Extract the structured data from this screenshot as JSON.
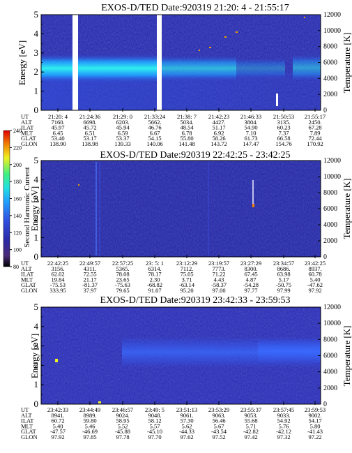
{
  "chart_data": [
    {
      "type": "heatmap",
      "title": "EXOS-D/TED   Date:920319  21:20: 4 - 21:55:17",
      "ylabel": "Energy [eV]",
      "y2label": "Temperature [K]",
      "ylim": [
        0,
        5
      ],
      "yticks": [
        "0",
        "1",
        "2",
        "3",
        "4",
        "5"
      ],
      "y2lim": [
        0,
        12000
      ],
      "y2ticks": [
        "0",
        "2000",
        "4000",
        "6000",
        "8000",
        "10000",
        "12000"
      ],
      "row_labels": [
        "UT",
        "ALT",
        "ILAT",
        "MLT",
        "GLAT",
        "GLON"
      ],
      "columns": [
        [
          "21:20: 4",
          "7160.",
          "45.97",
          "6.45",
          "53.40",
          "138.90"
        ],
        [
          "21:24:36",
          "6698.",
          "45.72",
          "6.51",
          "53.17",
          "138.98"
        ],
        [
          "21:29: 0",
          "6203.",
          "45.94",
          "6.59",
          "53.37",
          "139.33"
        ],
        [
          "21:33:24",
          "5662.",
          "46.76",
          "6.67",
          "54.15",
          "140.06"
        ],
        [
          "21:38: 7",
          "5034.",
          "48.54",
          "6.78",
          "55.80",
          "141.48"
        ],
        [
          "21:42:23",
          "4427.",
          "51.17",
          "6.92",
          "58.26",
          "143.72"
        ],
        [
          "21:46:33",
          "3804.",
          "54.90",
          "7.10",
          "61.73",
          "147.47"
        ],
        [
          "21:50:53",
          "3135.",
          "60.23",
          "7.37",
          "66.58",
          "154.76"
        ],
        [
          "21:55:17",
          "2450.",
          "67.28",
          "7.89",
          "72.44",
          "170.92"
        ]
      ]
    },
    {
      "type": "heatmap",
      "title": "EXOS-D/TED   Date:920319  22:42:25 - 23:42:25",
      "ylabel": "Energy [eV]",
      "y2label": "Temperature [K]",
      "ylim": [
        0,
        5
      ],
      "yticks": [
        "0",
        "1",
        "2",
        "3",
        "4",
        "5"
      ],
      "y2lim": [
        0,
        12000
      ],
      "y2ticks": [
        "0",
        "2000",
        "4000",
        "6000",
        "8000",
        "10000",
        "12000"
      ],
      "colorbar": {
        "label": "Second Harmonic Current",
        "range": [
          80,
          240
        ],
        "ticks": [
          "80",
          "100",
          "120",
          "140",
          "160",
          "180",
          "200",
          "220",
          "240"
        ]
      },
      "row_labels": [
        "UT",
        "ALT",
        "ILAT",
        "MLT",
        "GLAT",
        "GLON"
      ],
      "columns": [
        [
          "22:42:25",
          "3156.",
          "62.02",
          "19.84",
          "-75.53",
          "333.95"
        ],
        [
          "22:49:57",
          "4311.",
          "72.55",
          "21.17",
          "-81.37",
          "37.97"
        ],
        [
          "22:57:25",
          "5365.",
          "78.08",
          "23.65",
          "-75.63",
          "79.65"
        ],
        [
          "23: 5: 1",
          "6314.",
          "78.17",
          "2.30",
          "-68.82",
          "91.07"
        ],
        [
          "23:12:29",
          "7112.",
          "75.05",
          "3.71",
          "-63.14",
          "95.20"
        ],
        [
          "23:19:57",
          "7773.",
          "71.22",
          "4.43",
          "-58.37",
          "97.00"
        ],
        [
          "23:27:29",
          "8300.",
          "67.45",
          "4.87",
          "-54.28",
          "97.77"
        ],
        [
          "23:34:57",
          "8686.",
          "63.98",
          "5.17",
          "-50.75",
          "97.99"
        ],
        [
          "23:42:25",
          "8937.",
          "60.78",
          "5.40",
          "-47.62",
          "97.92"
        ]
      ]
    },
    {
      "type": "heatmap",
      "title": "EXOS-D/TED   Date:920319  23:42:33 - 23:59:53",
      "ylabel": "Energy [eV]",
      "y2label": "Temperature [K]",
      "ylim": [
        0,
        5
      ],
      "yticks": [
        "0",
        "1",
        "2",
        "3",
        "4",
        "5"
      ],
      "y2lim": [
        0,
        12000
      ],
      "y2ticks": [
        "0",
        "2000",
        "4000",
        "6000",
        "8000",
        "10000",
        "12000"
      ],
      "row_labels": [
        "UT",
        "ALT",
        "ILAT",
        "MLT",
        "GLAT",
        "GLON"
      ],
      "columns": [
        [
          "23:42:33",
          "8941.",
          "60.72",
          "5.40",
          "-47.57",
          "97.92"
        ],
        [
          "23:44:49",
          "8989.",
          "59.80",
          "5.46",
          "-46.69",
          "97.85"
        ],
        [
          "23:46:57",
          "9024.",
          "58.95",
          "5.52",
          "-45.88",
          "97.78"
        ],
        [
          "23:49: 5",
          "9048.",
          "58.12",
          "5.57",
          "-45.10",
          "97.70"
        ],
        [
          "23:51:13",
          "9061.",
          "57.30",
          "5.62",
          "-44.33",
          "97.62"
        ],
        [
          "23:53:29",
          "9063.",
          "56.46",
          "5.67",
          "-43.54",
          "97.52"
        ],
        [
          "23:55:37",
          "9053.",
          "55.68",
          "5.71",
          "-42.82",
          "97.42"
        ],
        [
          "23:57:45",
          "9033.",
          "54.92",
          "5.76",
          "-42.12",
          "97.32"
        ],
        [
          "23:59:53",
          "9002.",
          "54.17",
          "5.80",
          "-41.43",
          "97.22"
        ]
      ]
    }
  ],
  "colors": {
    "background": "#2020a0",
    "scale": [
      "#000000",
      "#5a2a82",
      "#2a2aa8",
      "#3050e0",
      "#20a0ff",
      "#20e0e0",
      "#40f080",
      "#f0f020",
      "#f08000",
      "#e00000"
    ]
  }
}
